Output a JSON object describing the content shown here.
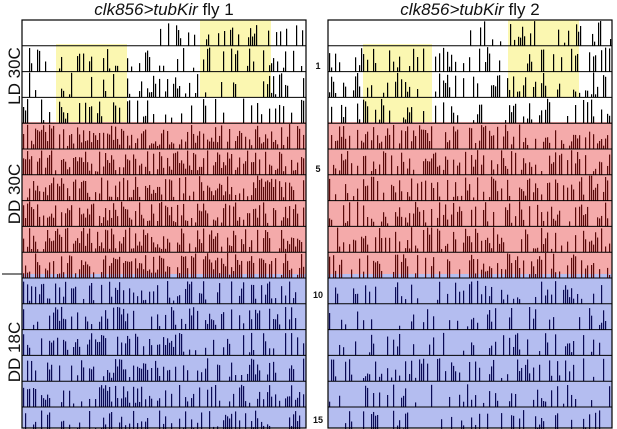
{
  "panels": [
    {
      "title_italic": "clk856>tubKir",
      "title_plain": " fly 1"
    },
    {
      "title_italic": "clk856>tubKir",
      "title_plain": " fly 2"
    }
  ],
  "conditions": [
    {
      "label": "LD 30C"
    },
    {
      "label": "DD 30C"
    },
    {
      "label": "DD 18C"
    }
  ],
  "day_numbers": [
    {
      "label": "1",
      "row": 1
    },
    {
      "label": "5",
      "row": 5
    },
    {
      "label": "10",
      "row": 10
    },
    {
      "label": "15",
      "row": 15
    }
  ],
  "colors": {
    "ld_background": "#ffffff",
    "light_phase": "#fbf6a8",
    "dd30_background": "#f4aaaa",
    "dd18_background": "#b4bdf0",
    "ld_bars": "#000000",
    "dd30_bars": "#5a0a0a",
    "dd18_bars": "#0a0a55",
    "borders": "#000000"
  }
}
